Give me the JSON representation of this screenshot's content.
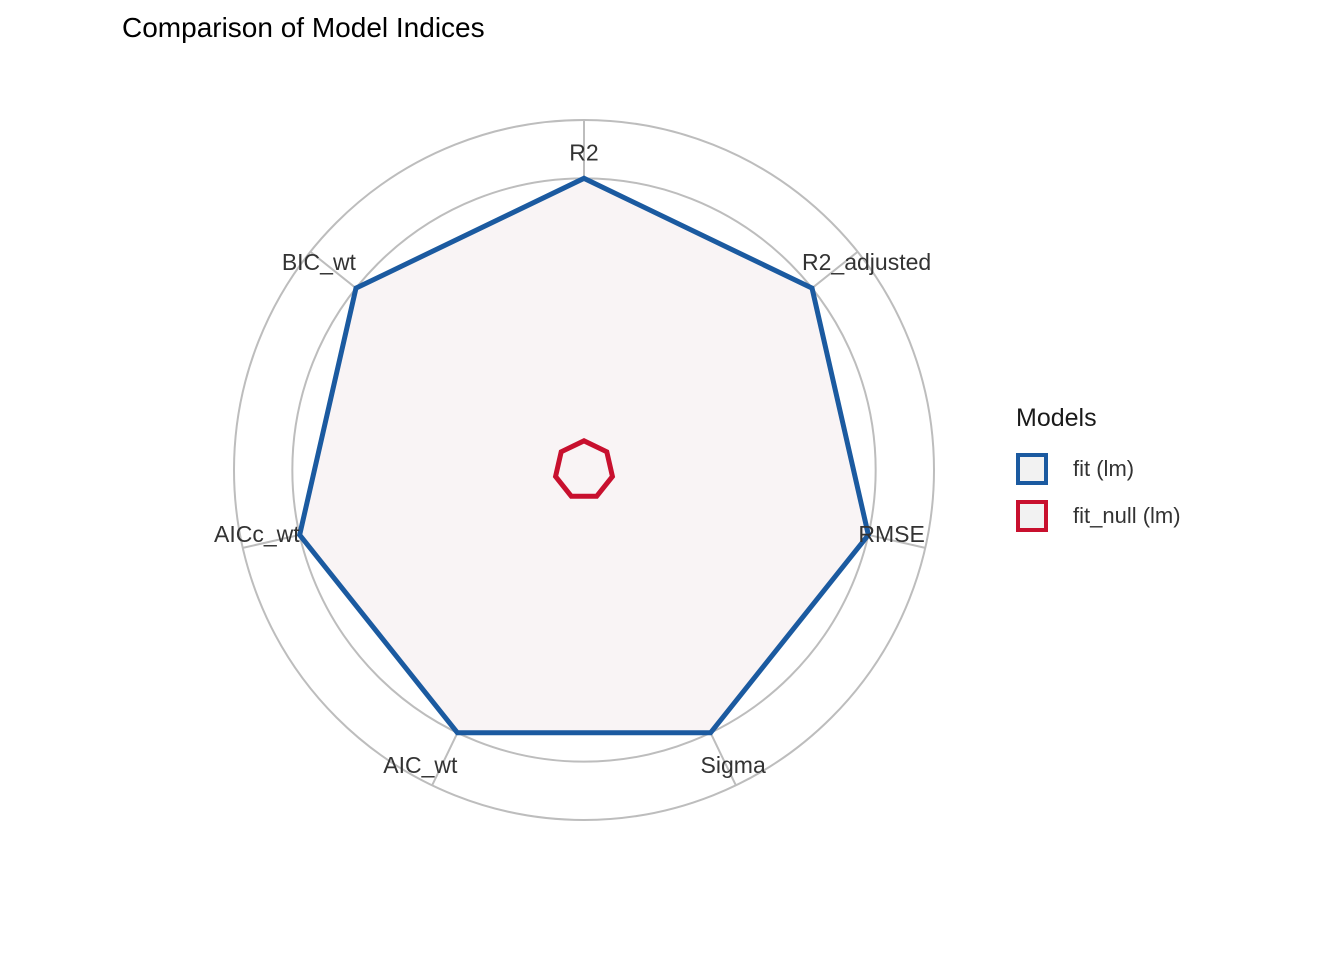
{
  "chart_data": {
    "type": "radar",
    "title": "Comparison of Model Indices",
    "axes": [
      "AIC_wt",
      "AICc_wt",
      "BIC_wt",
      "R2",
      "R2_adjusted",
      "RMSE",
      "Sigma"
    ],
    "rlim": [
      0,
      1.2
    ],
    "grid": true,
    "legend_title": "Models",
    "legend_position": "right",
    "series": [
      {
        "name": "fit (lm)",
        "color": "#1b5aa0",
        "values": [
          1,
          1,
          1,
          1,
          1,
          1,
          1
        ]
      },
      {
        "name": "fit_null (lm)",
        "color": "#c8102e",
        "values": [
          0.1,
          0.1,
          0.1,
          0.1,
          0.1,
          0.1,
          0.1
        ]
      }
    ],
    "fill_color": "#f9f4f5"
  }
}
